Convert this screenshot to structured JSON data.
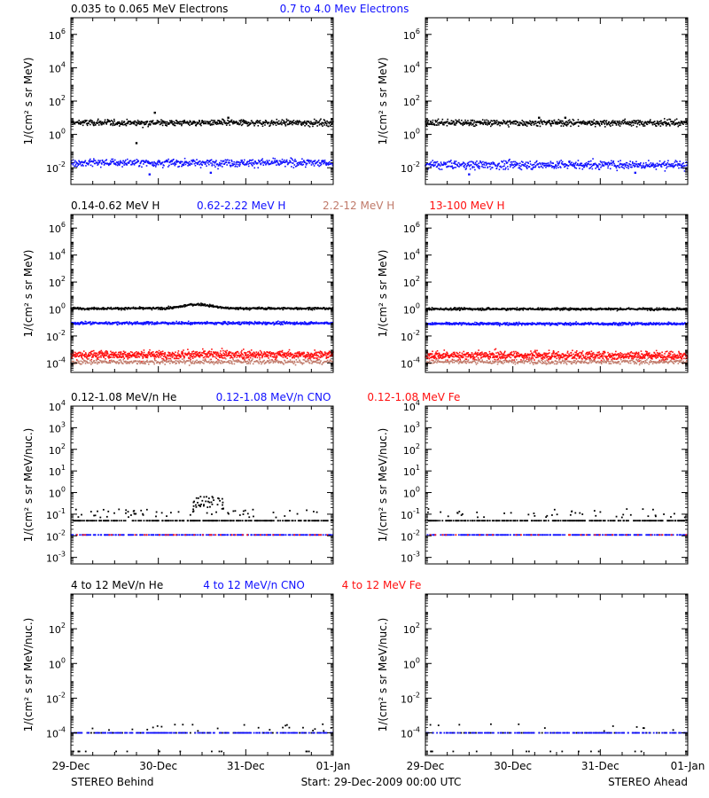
{
  "footer": {
    "left": "STEREO Behind",
    "center": "Start: 29-Dec-2009 00:00 UTC",
    "right": "STEREO Ahead"
  },
  "colors": {
    "black": "#000000",
    "blue": "#1010ff",
    "tan": "#c07a6a",
    "red": "#ff1010"
  },
  "x_ticks": [
    "29-Dec",
    "30-Dec",
    "31-Dec",
    "01-Jan"
  ],
  "chart_data": [
    {
      "type": "scatter",
      "row": 1,
      "scale": "log",
      "ylim": [
        0.001,
        10000000
      ],
      "ylabel": "1/(cm² s sr MeV)",
      "y_ticks": [
        {
          "v": 1000000.0,
          "b": "10",
          "e": "6"
        },
        {
          "v": 10000.0,
          "b": "10",
          "e": "4"
        },
        {
          "v": 100.0,
          "b": "10",
          "e": "2"
        },
        {
          "v": 1,
          "b": "10",
          "e": "0"
        },
        {
          "v": 0.01,
          "b": "10",
          "e": "-2"
        }
      ],
      "legend": [
        {
          "text": "0.035 to 0.065 MeV Electrons",
          "color": "#000000"
        },
        {
          "text": "0.7 to 4.0 Mev Electrons",
          "color": "#1010ff"
        }
      ],
      "behind": [
        {
          "name": "0.035 to 0.065 MeV Electrons",
          "color": "#000000",
          "level": 5,
          "spread": 0.13,
          "dense": true,
          "n": 600,
          "outliers": [
            [
              0.96,
              20
            ],
            [
              1.8,
              10
            ],
            [
              0.75,
              0.3
            ]
          ]
        },
        {
          "name": "0.7 to 4.0 Mev Electrons",
          "color": "#1010ff",
          "level": 0.02,
          "spread": 0.16,
          "dense": true,
          "n": 600,
          "outliers": [
            [
              0.9,
              0.004
            ],
            [
              1.6,
              0.005
            ]
          ]
        }
      ],
      "ahead": [
        {
          "name": "0.035 to 0.065 MeV Electrons",
          "color": "#000000",
          "level": 5,
          "spread": 0.13,
          "dense": true,
          "n": 600,
          "outliers": [
            [
              1.3,
              10
            ],
            [
              1.6,
              10
            ]
          ]
        },
        {
          "name": "0.7 to 4.0 Mev Electrons",
          "color": "#1010ff",
          "level": 0.015,
          "spread": 0.18,
          "dense": true,
          "n": 600,
          "outliers": [
            [
              0.5,
              0.004
            ],
            [
              2.4,
              0.005
            ]
          ]
        }
      ]
    },
    {
      "type": "scatter",
      "row": 2,
      "scale": "log",
      "ylim": [
        2e-05,
        10000000
      ],
      "ylabel": "1/(cm² s sr MeV)",
      "y_ticks": [
        {
          "v": 1000000.0,
          "b": "10",
          "e": "6"
        },
        {
          "v": 10000.0,
          "b": "10",
          "e": "4"
        },
        {
          "v": 100.0,
          "b": "10",
          "e": "2"
        },
        {
          "v": 1,
          "b": "10",
          "e": "0"
        },
        {
          "v": 0.01,
          "b": "10",
          "e": "-2"
        },
        {
          "v": 0.0001,
          "b": "10",
          "e": "-4"
        }
      ],
      "legend": [
        {
          "text": "0.14-0.62 MeV H",
          "color": "#000000"
        },
        {
          "text": "0.62-2.22 MeV H",
          "color": "#1010ff"
        },
        {
          "text": "2.2-12 MeV H",
          "color": "#c07a6a"
        },
        {
          "text": "13-100 MeV H",
          "color": "#ff1010"
        }
      ],
      "behind": [
        {
          "name": "0.14-0.62 MeV H",
          "color": "#000000",
          "level": 1.1,
          "spread": 0.06,
          "dense": true,
          "n": 600,
          "bump": [
            1.45,
            0.2,
            2.0
          ]
        },
        {
          "name": "0.62-2.22 MeV H",
          "color": "#1010ff",
          "level": 0.09,
          "spread": 0.07,
          "dense": true,
          "n": 600
        },
        {
          "name": "13-100 MeV H",
          "color": "#ff1010",
          "level": 0.0004,
          "spread": 0.22,
          "dense": true,
          "n": 900
        },
        {
          "name": "2.2-12 MeV H",
          "color": "#c07a6a",
          "level": 0.00012,
          "spread": 0.12,
          "dense": true,
          "n": 400
        }
      ],
      "ahead": [
        {
          "name": "0.14-0.62 MeV H",
          "color": "#000000",
          "level": 1.0,
          "spread": 0.06,
          "dense": true,
          "n": 600
        },
        {
          "name": "0.62-2.22 MeV H",
          "color": "#1010ff",
          "level": 0.08,
          "spread": 0.07,
          "dense": true,
          "n": 600
        },
        {
          "name": "13-100 MeV H",
          "color": "#ff1010",
          "level": 0.00035,
          "spread": 0.22,
          "dense": true,
          "n": 900
        },
        {
          "name": "2.2-12 MeV H",
          "color": "#c07a6a",
          "level": 0.00012,
          "spread": 0.12,
          "dense": true,
          "n": 400
        }
      ]
    },
    {
      "type": "scatter",
      "row": 3,
      "scale": "log",
      "ylim": [
        0.0005,
        10000
      ],
      "ylabel": "1/(cm² s sr MeV/nuc.)",
      "y_ticks": [
        {
          "v": 10000.0,
          "b": "10",
          "e": "4"
        },
        {
          "v": 1000.0,
          "b": "10",
          "e": "3"
        },
        {
          "v": 100.0,
          "b": "10",
          "e": "2"
        },
        {
          "v": 10,
          "b": "10",
          "e": "1"
        },
        {
          "v": 1,
          "b": "10",
          "e": "0"
        },
        {
          "v": 0.1,
          "b": "10",
          "e": "-1"
        },
        {
          "v": 0.01,
          "b": "10",
          "e": "-2"
        },
        {
          "v": 0.001,
          "b": "10",
          "e": "-3"
        }
      ],
      "legend": [
        {
          "text": "0.12-1.08 MeV/n He",
          "color": "#000000"
        },
        {
          "text": "0.12-1.08 MeV/n CNO",
          "color": "#1010ff"
        },
        {
          "text": "0.12-1.08 MeV Fe",
          "color": "#ff1010"
        }
      ],
      "behind": [
        {
          "name": "0.12-1.08 MeV/n He",
          "color": "#000000",
          "level": 0.05,
          "spread": 0.0,
          "dense": false,
          "n": 300,
          "upper": [
            0.11,
            60
          ],
          "burst": [
            1.4,
            1.75,
            0.35,
            40
          ]
        },
        {
          "name": "0.12-1.08 MeV/n CNO",
          "color": "#1010ff",
          "level": 0.011,
          "spread": 0.0,
          "dense": false,
          "n": 280
        },
        {
          "name": "0.12-1.08 MeV Fe",
          "color": "#ff1010",
          "level": 0.011,
          "spread": 0.0,
          "dense": false,
          "n": 60
        }
      ],
      "ahead": [
        {
          "name": "0.12-1.08 MeV/n He",
          "color": "#000000",
          "level": 0.05,
          "spread": 0.0,
          "dense": false,
          "n": 300,
          "upper": [
            0.11,
            45
          ]
        },
        {
          "name": "0.12-1.08 MeV/n CNO",
          "color": "#1010ff",
          "level": 0.011,
          "spread": 0.0,
          "dense": false,
          "n": 280
        },
        {
          "name": "0.12-1.08 MeV Fe",
          "color": "#ff1010",
          "level": 0.011,
          "spread": 0.0,
          "dense": false,
          "n": 40
        }
      ]
    },
    {
      "type": "scatter",
      "row": 4,
      "scale": "log",
      "ylim": [
        5e-06,
        10000
      ],
      "ylabel": "1/(cm² s sr MeV/nuc.)",
      "y_ticks": [
        {
          "v": 100,
          "b": "10",
          "e": "2"
        },
        {
          "v": 1,
          "b": "10",
          "e": "0"
        },
        {
          "v": 0.01,
          "b": "10",
          "e": "-2"
        },
        {
          "v": 0.0001,
          "b": "10",
          "e": "-4"
        }
      ],
      "legend": [
        {
          "text": "4 to 12 MeV/n He",
          "color": "#000000"
        },
        {
          "text": "4 to 12 MeV/n CNO",
          "color": "#1010ff"
        },
        {
          "text": "4 to 12 MeV Fe",
          "color": "#ff1010"
        }
      ],
      "behind": [
        {
          "name": "4 to 12 MeV/n He",
          "color": "#000000",
          "level": 0.0001,
          "spread": 0.0,
          "dense": false,
          "n": 120,
          "upper": [
            0.0002,
            25
          ],
          "low": [
            8.5e-06,
            15
          ]
        },
        {
          "name": "4 to 12 MeV/n CNO",
          "color": "#1010ff",
          "level": 0.0001,
          "spread": 0.0,
          "dense": false,
          "n": 220
        }
      ],
      "ahead": [
        {
          "name": "4 to 12 MeV/n He",
          "color": "#000000",
          "level": 0.0001,
          "spread": 0.0,
          "dense": false,
          "n": 100,
          "upper": [
            0.0002,
            12
          ],
          "low": [
            8.5e-06,
            15
          ]
        },
        {
          "name": "4 to 12 MeV/n CNO",
          "color": "#1010ff",
          "level": 0.0001,
          "spread": 0.0,
          "dense": false,
          "n": 220
        }
      ]
    }
  ]
}
